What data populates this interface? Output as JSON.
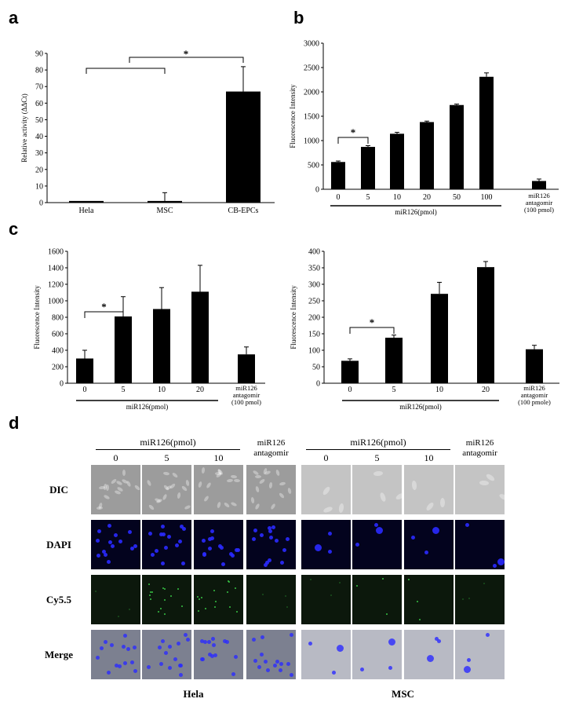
{
  "panel_labels": {
    "a": "a",
    "b": "b",
    "c": "c",
    "d": "d"
  },
  "significance_mark": "*",
  "chart_data": [
    {
      "id": "a",
      "type": "bar",
      "categories": [
        "Hela",
        "MSC",
        "CB-EPCs"
      ],
      "values": [
        1,
        1,
        67
      ],
      "errors": [
        0,
        5,
        15
      ],
      "ylabel": "Relative activity (ΔΔCt)",
      "ylim": [
        0,
        90
      ],
      "yticks": [
        0,
        10,
        20,
        30,
        40,
        50,
        60,
        70,
        80,
        90
      ]
    },
    {
      "id": "b",
      "type": "bar",
      "categories": [
        "0",
        "5",
        "10",
        "20",
        "50",
        "100",
        "miR126 antagomir (100 pmol)"
      ],
      "values": [
        560,
        870,
        1140,
        1380,
        1730,
        2310,
        170
      ],
      "errors": [
        20,
        25,
        30,
        20,
        20,
        80,
        40
      ],
      "ylabel": "Fluorescence Intensity",
      "xlabel": "miR126(pmol)",
      "ylim": [
        0,
        3000
      ],
      "yticks": [
        0,
        500,
        1000,
        1500,
        2000,
        2500,
        3000
      ]
    },
    {
      "id": "c1",
      "type": "bar",
      "categories": [
        "0",
        "5",
        "10",
        "20",
        "miR126 antagomir (100 pmol)"
      ],
      "values": [
        300,
        810,
        900,
        1110,
        350
      ],
      "errors": [
        100,
        240,
        260,
        320,
        90
      ],
      "ylabel": "Fluorescence Intensity",
      "xlabel": "miR126(pmol)",
      "ylim": [
        0,
        1600
      ],
      "yticks": [
        0,
        200,
        400,
        600,
        800,
        1000,
        1200,
        1400,
        1600
      ]
    },
    {
      "id": "c2",
      "type": "bar",
      "categories": [
        "0",
        "5",
        "10",
        "20",
        "miR126 antagomir (100 pmole)"
      ],
      "values": [
        68,
        138,
        271,
        352,
        103
      ],
      "errors": [
        6,
        8,
        35,
        17,
        12
      ],
      "ylabel": "Fluorescence Intensity",
      "xlabel": "miR126(pmol)",
      "ylim": [
        0,
        400
      ],
      "yticks": [
        0,
        50,
        100,
        150,
        200,
        250,
        300,
        350,
        400
      ]
    }
  ],
  "panel_d": {
    "group_header": "miR126(pmol)",
    "conc_labels": [
      "0",
      "5",
      "10"
    ],
    "antagomir_label": "miR126 antagomir",
    "rows": [
      "DIC",
      "DAPI",
      "Cy5.5",
      "Merge"
    ],
    "cells": [
      "Hela",
      "MSC"
    ],
    "colors": {
      "dic": "#a9a9a9",
      "dapi": "#05052a",
      "cy55": "#0d1a0d",
      "merge": "#8a8fa0",
      "nucleus": "#2a2aff",
      "green": "#3cd64a"
    }
  }
}
